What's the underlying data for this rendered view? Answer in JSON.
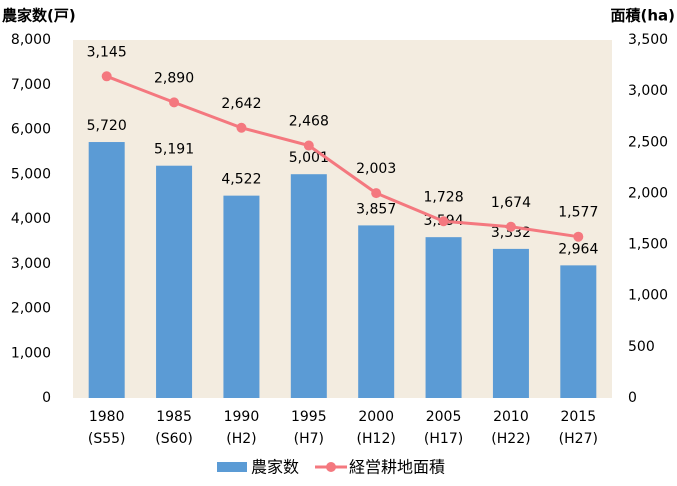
{
  "chart_data": {
    "type": "bar",
    "title_left": "農家数(戸)",
    "title_right": "面積(ha)",
    "categories": [
      [
        "1980",
        "(S55)"
      ],
      [
        "1985",
        "(S60)"
      ],
      [
        "1990",
        "(H2)"
      ],
      [
        "1995",
        "(H7)"
      ],
      [
        "2000",
        "(H12)"
      ],
      [
        "2005",
        "(H17)"
      ],
      [
        "2010",
        "(H22)"
      ],
      [
        "2015",
        "(H27)"
      ]
    ],
    "series": [
      {
        "name": "農家数",
        "type": "bar",
        "color": "#5b9bd5",
        "axis": "y",
        "values": [
          5720,
          5191,
          4522,
          5001,
          3857,
          3594,
          3332,
          2964
        ],
        "value_labels": [
          "5,720",
          "5,191",
          "4,522",
          "5,001",
          "3,857",
          "3,594",
          "3,332",
          "2,964"
        ]
      },
      {
        "name": "経営耕地面積",
        "type": "line",
        "color": "#f4787f",
        "axis": "y2",
        "values": [
          3145,
          2890,
          2642,
          2468,
          2003,
          1728,
          1674,
          1577
        ],
        "value_labels": [
          "3,145",
          "2,890",
          "2,642",
          "2,468",
          "2,003",
          "1,728",
          "1,674",
          "1,577"
        ]
      }
    ],
    "ylim": [
      0,
      8000
    ],
    "yticks": [
      0,
      {
        "value": 1000,
        "label": "1,000"
      },
      {
        "value": 2000,
        "label": "2,000"
      },
      {
        "value": 3000,
        "label": "3,000"
      },
      {
        "value": 4000,
        "label": "4,000"
      },
      {
        "value": 5000,
        "label": "5,000"
      },
      {
        "value": 6000,
        "label": "6,000"
      },
      {
        "value": 7000,
        "label": "7,000"
      },
      {
        "value": 8000,
        "label": "8,000"
      }
    ],
    "y2lim": [
      0,
      3500
    ],
    "y2ticks": [
      0,
      500,
      {
        "value": 1000,
        "label": "1,000"
      },
      {
        "value": 1500,
        "label": "1,500"
      },
      {
        "value": 2000,
        "label": "2,000"
      },
      {
        "value": 2500,
        "label": "2,500"
      },
      {
        "value": 3000,
        "label": "3,000"
      },
      {
        "value": 3500,
        "label": "3,500"
      }
    ],
    "grid": false,
    "plot_background": "#f3ece0",
    "legend": "bottom"
  }
}
